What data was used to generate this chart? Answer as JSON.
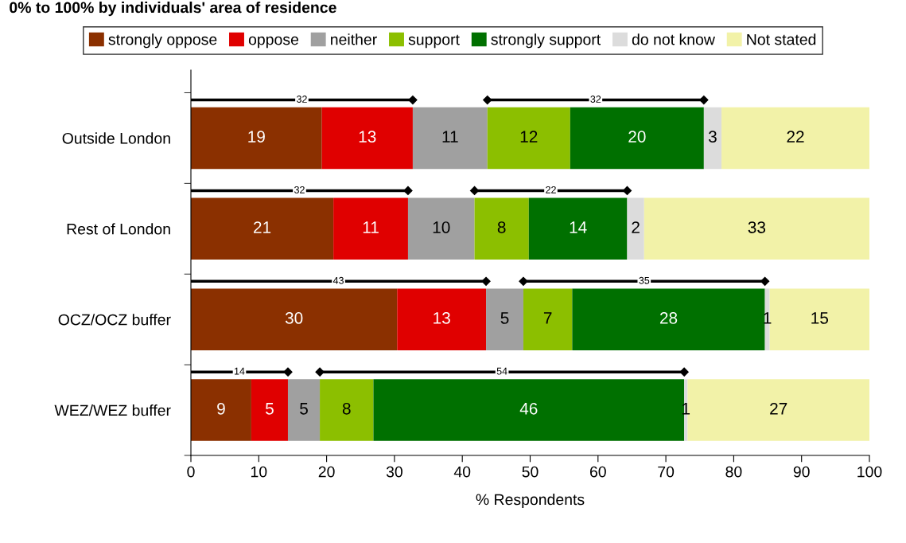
{
  "chart_data": {
    "type": "bar",
    "orientation": "horizontal",
    "stacked": true,
    "title": "0% to 100% by individuals' area of residence",
    "xlabel": "% Respondents",
    "categories": [
      "Outside London",
      "Rest of London",
      "OCZ/OCZ buffer",
      "WEZ/WEZ buffer"
    ],
    "series": [
      {
        "name": "strongly oppose",
        "color": "#8b3000",
        "values": [
          19.3,
          21.0,
          30.4,
          8.9
        ],
        "value_labels": [
          "19",
          "21",
          "30",
          "9"
        ]
      },
      {
        "name": "oppose",
        "color": "#e00000",
        "values": [
          13.4,
          11.0,
          13.1,
          5.4
        ],
        "value_labels": [
          "13",
          "11",
          "13",
          "5"
        ]
      },
      {
        "name": "neither",
        "color": "#a0a0a0",
        "values": [
          11.0,
          9.8,
          5.5,
          4.7
        ],
        "value_labels": [
          "11",
          "10",
          "5",
          "5"
        ]
      },
      {
        "name": "support",
        "color": "#8cbf00",
        "values": [
          12.2,
          8.0,
          7.2,
          7.9
        ],
        "value_labels": [
          "12",
          "8",
          "7",
          "8"
        ]
      },
      {
        "name": "strongly support",
        "color": "#007000",
        "values": [
          19.7,
          14.5,
          28.4,
          45.8
        ],
        "value_labels": [
          "20",
          "14",
          "28",
          "46"
        ]
      },
      {
        "name": "do not know",
        "color": "#dcdcdc",
        "values": [
          2.6,
          2.5,
          0.7,
          0.5
        ],
        "value_labels": [
          "3",
          "2",
          "1",
          "1"
        ]
      },
      {
        "name": "Not stated",
        "color": "#f2f2a8",
        "values": [
          21.8,
          33.5,
          14.8,
          26.8
        ],
        "value_labels": [
          "22",
          "33",
          "15",
          "27"
        ]
      }
    ],
    "annotations": [
      "32",
      "32",
      "32",
      "22",
      "43",
      "35",
      "14",
      "54"
    ],
    "xlim": [
      0,
      100
    ],
    "xticks": [
      0,
      10,
      20,
      30,
      40,
      50,
      60,
      70,
      80,
      90,
      100
    ],
    "grid": false,
    "legend": "top"
  }
}
